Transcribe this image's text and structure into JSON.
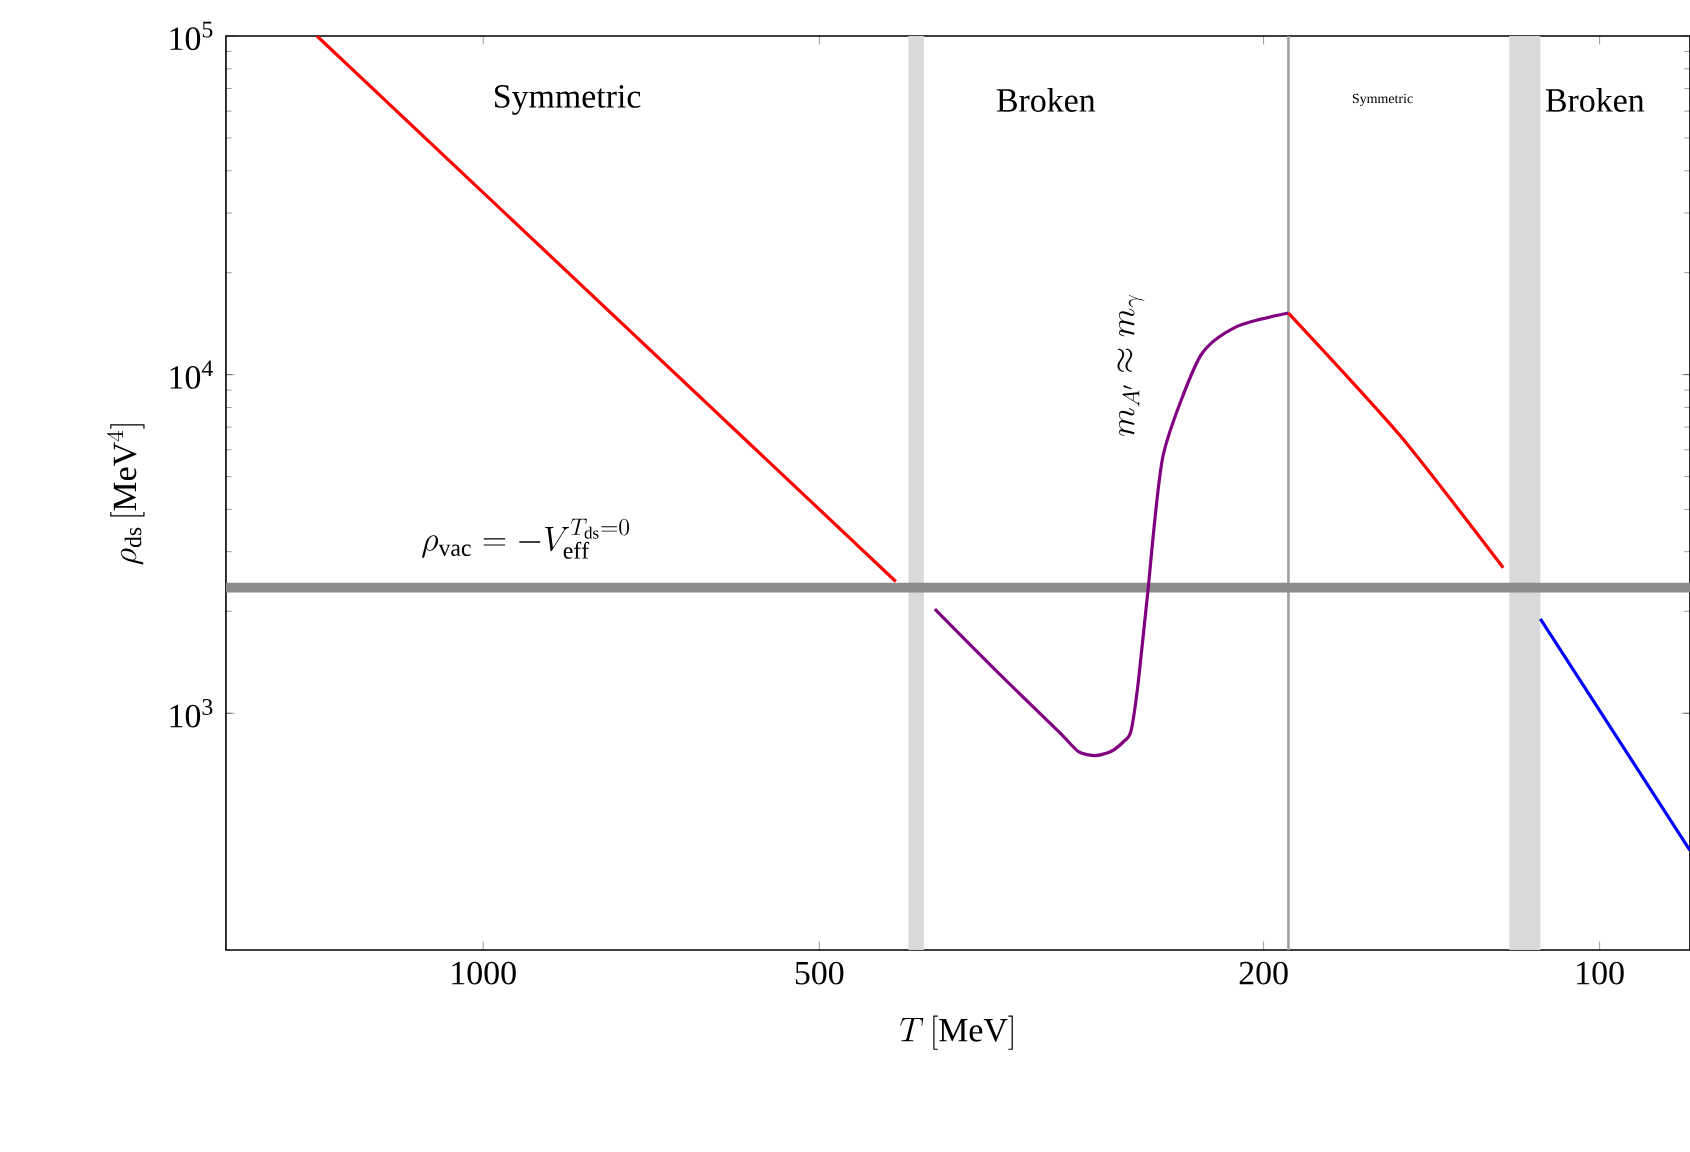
{
  "chart_data": {
    "type": "line",
    "xlabel": "T\\,[\\mathrm{MeV}]",
    "ylabel": "\\rho_{\\mathrm{ds}}\\,[\\mathrm{MeV}^4]",
    "log": "xy",
    "xlim": [
      1700,
      83
    ],
    "ylim": [
      200,
      100000
    ],
    "xticks": [
      1000,
      500,
      200,
      100
    ],
    "yticks": [
      {
        "value": 1000,
        "label": "10$^{3}$"
      },
      {
        "value": 10000,
        "label": "10$^{4}$"
      },
      {
        "value": 100000,
        "label": "10$^{5}$"
      }
    ],
    "series": [
      {
        "color": "#ff0000",
        "x": [
          1409,
          427
        ],
        "values": [
          100000,
          2450
        ]
      },
      {
        "color": "#800080",
        "x": [
          394,
          346,
          305,
          293,
          283,
          274,
          267,
          263,
          259,
          254,
          246,
          228,
          211,
          190
        ],
        "values": [
          2030,
          1320,
          881,
          771,
          750,
          771,
          824,
          881,
          1230,
          2260,
          5780,
          11300,
          13900,
          15200
        ]
      },
      {
        "color": "#ff0000",
        "x": [
          190,
          151,
          122
        ],
        "values": [
          15200,
          6620,
          2690
        ]
      },
      {
        "color": "#0000ff",
        "x": [
          113,
          83
        ],
        "values": [
          1900,
          394
        ]
      }
    ],
    "bands": [
      {
        "axis": "x",
        "from": 416,
        "to": 403,
        "color": "#d9d9d9"
      },
      {
        "axis": "x",
        "from": 120.5,
        "to": 113,
        "color": "#d9d9d9"
      }
    ],
    "ref_lines": [
      {
        "axis": "x",
        "value": 190,
        "color": "#a0a0a0"
      },
      {
        "axis": "y",
        "value": 2350,
        "color": "#8c8c8c"
      }
    ],
    "annotations": [
      "Symmetric",
      "Broken",
      "Symmetric",
      "Broken",
      "m_{A'} \\approx m_\\gamma",
      "\\rho_{\\mathrm{vac}} = -V_{\\mathrm{eff}}^{T_{\\mathrm{ds}}=0}"
    ],
    "marker": "none"
  }
}
